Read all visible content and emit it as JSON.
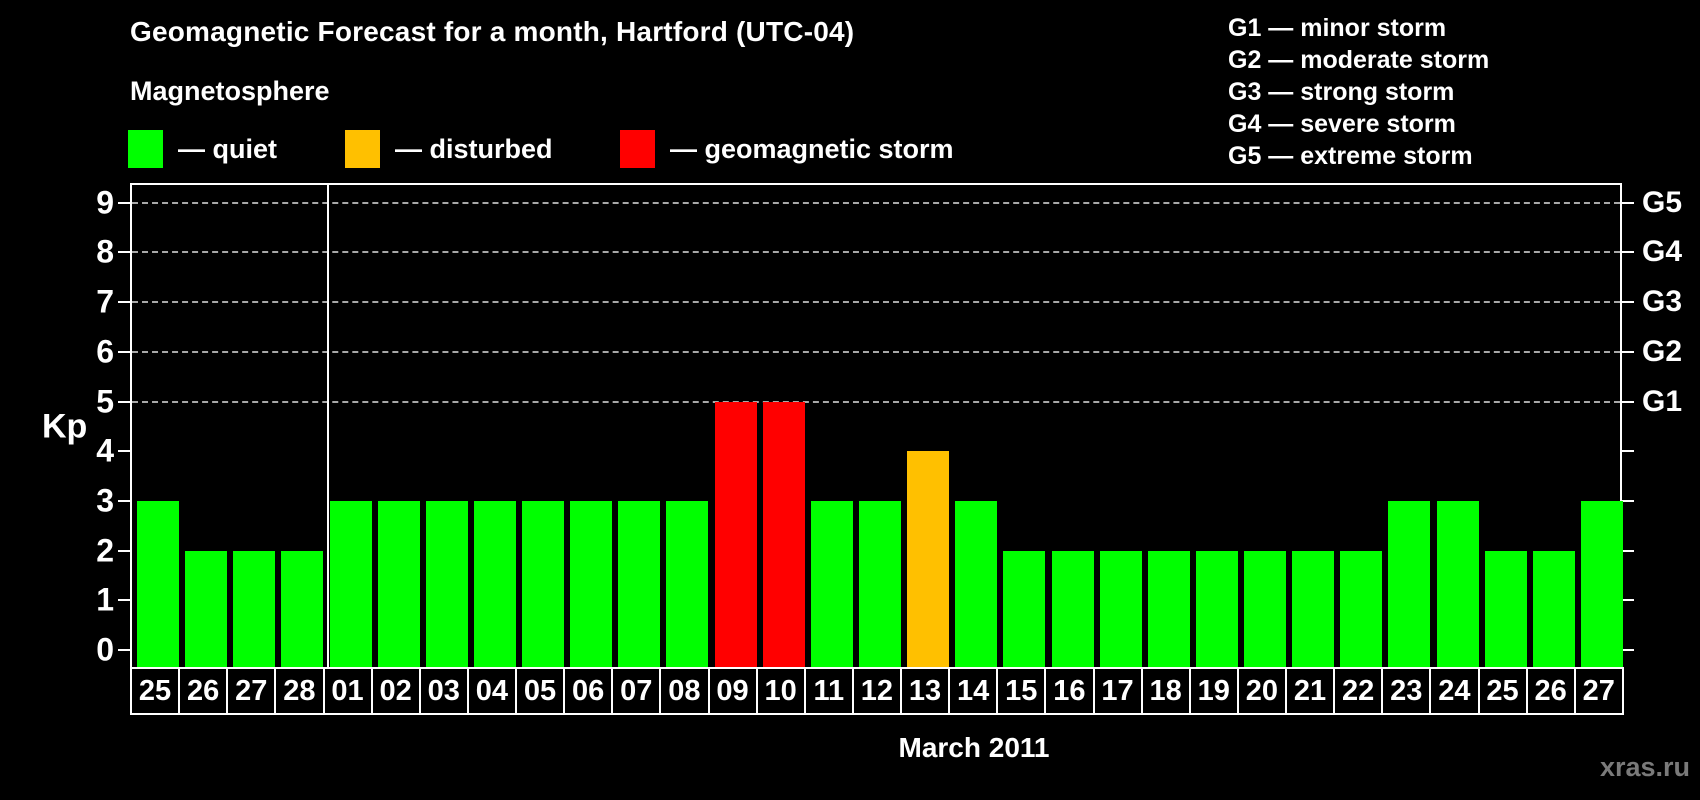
{
  "header": {
    "title": "Geomagnetic Forecast for a month, Hartford (UTC-04)",
    "subtitle": "Magnetosphere"
  },
  "legend": {
    "items": [
      {
        "name": "quiet",
        "label": "— quiet",
        "color": "#00FF00",
        "x": 128
      },
      {
        "name": "disturbed",
        "label": "— disturbed",
        "color": "#FFC000",
        "x": 345
      },
      {
        "name": "storm",
        "label": "— geomagnetic storm",
        "color": "#FF0000",
        "x": 620
      }
    ]
  },
  "g_legend": {
    "items": [
      "G1 — minor storm",
      "G2 — moderate storm",
      "G3 — strong storm",
      "G4 — severe storm",
      "G5 — extreme storm"
    ]
  },
  "chart_data": {
    "type": "bar",
    "title": "Geomagnetic Forecast for a month, Hartford (UTC-04)",
    "ylabel": "Kp",
    "xlabel": "March 2011",
    "ylim": [
      0,
      9
    ],
    "yticks": [
      0,
      1,
      2,
      3,
      4,
      5,
      6,
      7,
      8,
      9
    ],
    "grid": "dashed horizontal lines at Kp 5-9 only",
    "grid_levels_kp": [
      5,
      6,
      7,
      8,
      9
    ],
    "right_axis_labels": [
      {
        "kp": 5,
        "label": "G1"
      },
      {
        "kp": 6,
        "label": "G2"
      },
      {
        "kp": 7,
        "label": "G3"
      },
      {
        "kp": 8,
        "label": "G4"
      },
      {
        "kp": 9,
        "label": "G5"
      }
    ],
    "month_boundary_after_index": 3,
    "status_colors": {
      "quiet": "#00FF00",
      "disturbed": "#FFC000",
      "storm": "#FF0000"
    },
    "bars": [
      {
        "date": "25",
        "kp": 3,
        "status": "quiet"
      },
      {
        "date": "26",
        "kp": 2,
        "status": "quiet"
      },
      {
        "date": "27",
        "kp": 2,
        "status": "quiet"
      },
      {
        "date": "28",
        "kp": 2,
        "status": "quiet"
      },
      {
        "date": "01",
        "kp": 3,
        "status": "quiet"
      },
      {
        "date": "02",
        "kp": 3,
        "status": "quiet"
      },
      {
        "date": "03",
        "kp": 3,
        "status": "quiet"
      },
      {
        "date": "04",
        "kp": 3,
        "status": "quiet"
      },
      {
        "date": "05",
        "kp": 3,
        "status": "quiet"
      },
      {
        "date": "06",
        "kp": 3,
        "status": "quiet"
      },
      {
        "date": "07",
        "kp": 3,
        "status": "quiet"
      },
      {
        "date": "08",
        "kp": 3,
        "status": "quiet"
      },
      {
        "date": "09",
        "kp": 5,
        "status": "storm"
      },
      {
        "date": "10",
        "kp": 5,
        "status": "storm"
      },
      {
        "date": "11",
        "kp": 3,
        "status": "quiet"
      },
      {
        "date": "12",
        "kp": 3,
        "status": "quiet"
      },
      {
        "date": "13",
        "kp": 4,
        "status": "disturbed"
      },
      {
        "date": "14",
        "kp": 3,
        "status": "quiet"
      },
      {
        "date": "15",
        "kp": 2,
        "status": "quiet"
      },
      {
        "date": "16",
        "kp": 2,
        "status": "quiet"
      },
      {
        "date": "17",
        "kp": 2,
        "status": "quiet"
      },
      {
        "date": "18",
        "kp": 2,
        "status": "quiet"
      },
      {
        "date": "19",
        "kp": 2,
        "status": "quiet"
      },
      {
        "date": "20",
        "kp": 2,
        "status": "quiet"
      },
      {
        "date": "21",
        "kp": 2,
        "status": "quiet"
      },
      {
        "date": "22",
        "kp": 2,
        "status": "quiet"
      },
      {
        "date": "23",
        "kp": 3,
        "status": "quiet"
      },
      {
        "date": "24",
        "kp": 3,
        "status": "quiet"
      },
      {
        "date": "25",
        "kp": 2,
        "status": "quiet"
      },
      {
        "date": "26",
        "kp": 2,
        "status": "quiet"
      },
      {
        "date": "27",
        "kp": 3,
        "status": "quiet"
      }
    ]
  },
  "footer": {
    "xlabel": "March 2011",
    "watermark": "xras.ru"
  },
  "colors": {
    "background": "#000000",
    "text": "#FFFFFF",
    "grid": "#A8A8A8",
    "axis": "#FFFFFF",
    "watermark": "#7A7A7A"
  }
}
